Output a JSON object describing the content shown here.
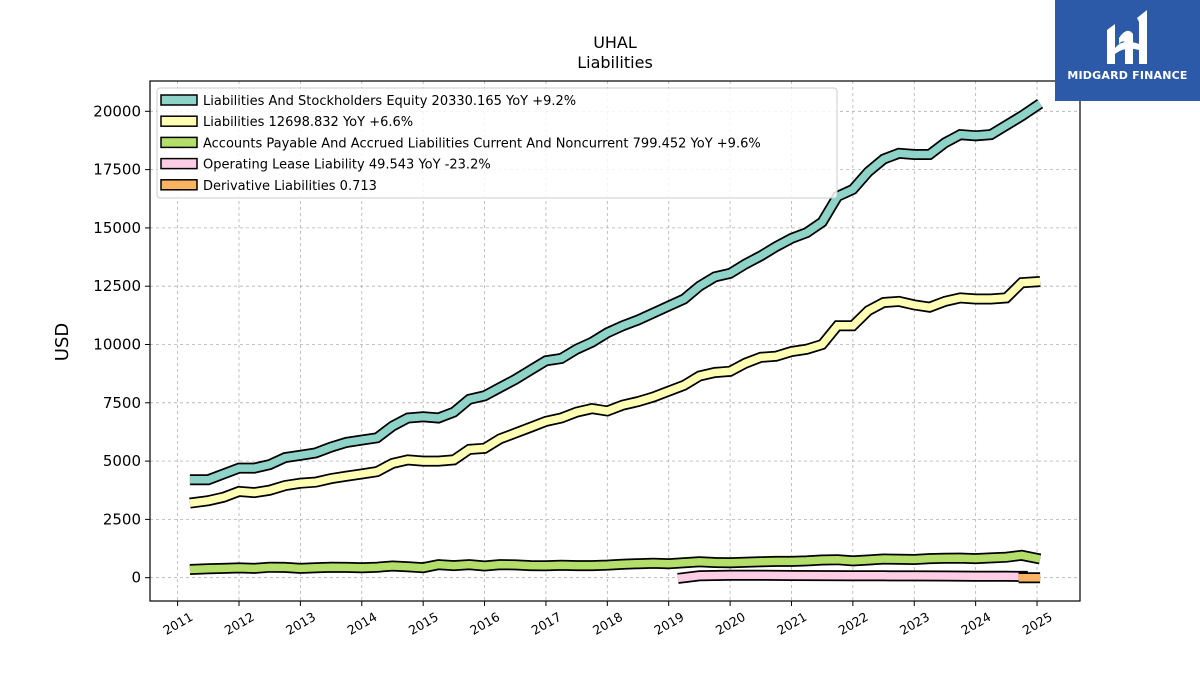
{
  "brand": {
    "name": "MIDGARD FINANCE",
    "color": "#2d5aa8"
  },
  "chart_data": {
    "type": "line",
    "title": "UHAL",
    "subtitle": "Liabilities",
    "xlabel": "",
    "ylabel": "USD",
    "xlim": [
      2010.55,
      2025.7
    ],
    "ylim": [
      -1000,
      21300
    ],
    "yticks": [
      0,
      2500,
      5000,
      7500,
      10000,
      12500,
      15000,
      17500,
      20000
    ],
    "xticks": [
      2011,
      2012,
      2013,
      2014,
      2015,
      2016,
      2017,
      2018,
      2019,
      2020,
      2021,
      2022,
      2023,
      2024,
      2025
    ],
    "grid": true,
    "legend_position": "upper-left",
    "series": [
      {
        "name": "Liabilities And Stockholders Equity  20330.165 YoY +9.2%",
        "color": "#8dd3c7",
        "x": [
          2011.2,
          2011.5,
          2011.75,
          2012.0,
          2012.25,
          2012.5,
          2012.75,
          2013.0,
          2013.25,
          2013.5,
          2013.75,
          2014.0,
          2014.25,
          2014.5,
          2014.75,
          2015.0,
          2015.25,
          2015.5,
          2015.75,
          2016.0,
          2016.25,
          2016.5,
          2016.75,
          2017.0,
          2017.25,
          2017.5,
          2017.75,
          2018.0,
          2018.25,
          2018.5,
          2018.75,
          2019.0,
          2019.25,
          2019.5,
          2019.75,
          2020.0,
          2020.25,
          2020.5,
          2020.75,
          2021.0,
          2021.25,
          2021.5,
          2021.75,
          2022.0,
          2022.25,
          2022.5,
          2022.75,
          2023.0,
          2023.25,
          2023.5,
          2023.75,
          2024.0,
          2024.25,
          2024.5,
          2024.75,
          2025.05
        ],
        "values": [
          4200,
          4200,
          4450,
          4700,
          4700,
          4850,
          5150,
          5250,
          5350,
          5600,
          5800,
          5900,
          6000,
          6500,
          6850,
          6900,
          6850,
          7100,
          7650,
          7800,
          8150,
          8500,
          8900,
          9300,
          9400,
          9800,
          10100,
          10500,
          10800,
          11050,
          11350,
          11650,
          11950,
          12500,
          12900,
          13050,
          13450,
          13800,
          14200,
          14550,
          14800,
          15250,
          16350,
          16650,
          17400,
          17950,
          18200,
          18150,
          18150,
          18650,
          19000,
          18950,
          19000,
          19400,
          19800,
          20330
        ]
      },
      {
        "name": "Liabilities  12698.832 YoY +6.6%",
        "color": "#ffffb3",
        "x": [
          2011.2,
          2011.5,
          2011.75,
          2012.0,
          2012.25,
          2012.5,
          2012.75,
          2013.0,
          2013.25,
          2013.5,
          2013.75,
          2014.0,
          2014.25,
          2014.5,
          2014.75,
          2015.0,
          2015.25,
          2015.5,
          2015.75,
          2016.0,
          2016.25,
          2016.5,
          2016.75,
          2017.0,
          2017.25,
          2017.5,
          2017.75,
          2018.0,
          2018.25,
          2018.5,
          2018.75,
          2019.0,
          2019.25,
          2019.5,
          2019.75,
          2020.0,
          2020.25,
          2020.5,
          2020.75,
          2021.0,
          2021.25,
          2021.5,
          2021.75,
          2022.0,
          2022.25,
          2022.5,
          2022.75,
          2023.0,
          2023.25,
          2023.5,
          2023.75,
          2024.0,
          2024.25,
          2024.5,
          2024.75,
          2025.05
        ],
        "values": [
          3200,
          3300,
          3450,
          3700,
          3650,
          3750,
          3950,
          4050,
          4100,
          4250,
          4350,
          4450,
          4550,
          4900,
          5050,
          5000,
          5000,
          5050,
          5500,
          5550,
          5950,
          6200,
          6450,
          6700,
          6850,
          7100,
          7250,
          7150,
          7400,
          7550,
          7750,
          8000,
          8250,
          8650,
          8800,
          8850,
          9200,
          9450,
          9500,
          9700,
          9800,
          10000,
          10800,
          10800,
          11450,
          11800,
          11850,
          11700,
          11600,
          11850,
          12000,
          11950,
          11950,
          12000,
          12650,
          12700
        ]
      },
      {
        "name": "Accounts Payable And Accrued Liabilities Current And Noncurrent  799.452 YoY +9.6%",
        "color": "#b3de69",
        "x": [
          2011.2,
          2011.5,
          2011.75,
          2012.0,
          2012.25,
          2012.5,
          2012.75,
          2013.0,
          2013.25,
          2013.5,
          2013.75,
          2014.0,
          2014.25,
          2014.5,
          2014.75,
          2015.0,
          2015.25,
          2015.5,
          2015.75,
          2016.0,
          2016.25,
          2016.5,
          2016.75,
          2017.0,
          2017.25,
          2017.5,
          2017.75,
          2018.0,
          2018.25,
          2018.5,
          2018.75,
          2019.0,
          2019.25,
          2019.5,
          2019.75,
          2020.0,
          2020.25,
          2020.5,
          2020.75,
          2021.0,
          2021.25,
          2021.5,
          2021.75,
          2022.0,
          2022.25,
          2022.5,
          2022.75,
          2023.0,
          2023.25,
          2023.5,
          2023.75,
          2024.0,
          2024.25,
          2024.5,
          2024.75,
          2025.05
        ],
        "values": [
          350,
          380,
          400,
          420,
          400,
          450,
          440,
          400,
          430,
          450,
          440,
          430,
          450,
          500,
          470,
          430,
          560,
          520,
          560,
          500,
          560,
          550,
          520,
          510,
          530,
          520,
          520,
          540,
          580,
          600,
          620,
          600,
          640,
          680,
          650,
          640,
          660,
          680,
          700,
          700,
          720,
          760,
          770,
          720,
          760,
          800,
          790,
          780,
          820,
          830,
          840,
          820,
          850,
          880,
          960,
          800
        ]
      },
      {
        "name": "Operating Lease Liability  49.543 YoY -23.2%",
        "color": "#fccde5",
        "x": [
          2019.15,
          2019.5,
          2020.0,
          2020.5,
          2021.0,
          2021.5,
          2022.0,
          2022.5,
          2023.0,
          2023.5,
          2024.0,
          2024.5,
          2024.85
        ],
        "values": [
          -30,
          80,
          100,
          100,
          95,
          90,
          85,
          80,
          75,
          70,
          65,
          60,
          55
        ]
      },
      {
        "name": "Derivative Liabilities  0.713",
        "color": "#fdb462",
        "x": [
          2024.7,
          2025.05
        ],
        "values": [
          0.713,
          0.713
        ]
      }
    ]
  }
}
